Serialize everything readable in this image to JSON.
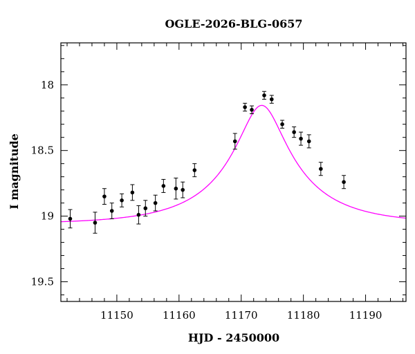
{
  "chart_data": {
    "type": "scatter",
    "title": "OGLE-2026-BLG-0657",
    "xlabel": "HJD - 2450000",
    "ylabel": "I magnitude",
    "xlim": [
      11141,
      11196.5
    ],
    "ylim": [
      19.65,
      17.68
    ],
    "y_inverted": true,
    "xticks_major": [
      11150,
      11160,
      11170,
      11180,
      11190
    ],
    "xticks_minor_step": 2,
    "yticks_major": [
      18,
      18.5,
      19,
      19.5
    ],
    "yticks_minor_step": 0.1,
    "xtick_labels": [
      "11150",
      "11160",
      "11170",
      "11180",
      "11190"
    ],
    "ytick_labels": [
      "18",
      "18.5",
      "19",
      "19.5"
    ],
    "grid": false,
    "colors": {
      "points": "#000000",
      "model": "#ff00ff",
      "axes": "#000000"
    },
    "series": [
      {
        "kind": "points_with_errorbars",
        "points": [
          {
            "x": 11142.5,
            "y": 19.02,
            "err": 0.07
          },
          {
            "x": 11146.5,
            "y": 19.05,
            "err": 0.08
          },
          {
            "x": 11148.0,
            "y": 18.85,
            "err": 0.06
          },
          {
            "x": 11149.2,
            "y": 18.96,
            "err": 0.06
          },
          {
            "x": 11150.8,
            "y": 18.88,
            "err": 0.05
          },
          {
            "x": 11152.5,
            "y": 18.82,
            "err": 0.06
          },
          {
            "x": 11153.5,
            "y": 18.99,
            "err": 0.07
          },
          {
            "x": 11154.6,
            "y": 18.94,
            "err": 0.06
          },
          {
            "x": 11156.2,
            "y": 18.9,
            "err": 0.06
          },
          {
            "x": 11157.5,
            "y": 18.77,
            "err": 0.05
          },
          {
            "x": 11159.5,
            "y": 18.79,
            "err": 0.08
          },
          {
            "x": 11160.6,
            "y": 18.8,
            "err": 0.06
          },
          {
            "x": 11162.5,
            "y": 18.65,
            "err": 0.05
          },
          {
            "x": 11169.0,
            "y": 18.43,
            "err": 0.06
          },
          {
            "x": 11170.6,
            "y": 18.17,
            "err": 0.03
          },
          {
            "x": 11171.7,
            "y": 18.19,
            "err": 0.03
          },
          {
            "x": 11173.7,
            "y": 18.08,
            "err": 0.03
          },
          {
            "x": 11174.9,
            "y": 18.11,
            "err": 0.03
          },
          {
            "x": 11176.6,
            "y": 18.3,
            "err": 0.03
          },
          {
            "x": 11178.5,
            "y": 18.36,
            "err": 0.04
          },
          {
            "x": 11179.6,
            "y": 18.41,
            "err": 0.05
          },
          {
            "x": 11180.9,
            "y": 18.43,
            "err": 0.05
          },
          {
            "x": 11182.8,
            "y": 18.64,
            "err": 0.05
          },
          {
            "x": 11186.5,
            "y": 18.74,
            "err": 0.05
          }
        ]
      },
      {
        "kind": "model_curve",
        "model": {
          "t0": 11173.3,
          "tE": 14.0,
          "u0": 0.25,
          "fs": 0.42,
          "baseline": 19.06
        }
      }
    ]
  }
}
